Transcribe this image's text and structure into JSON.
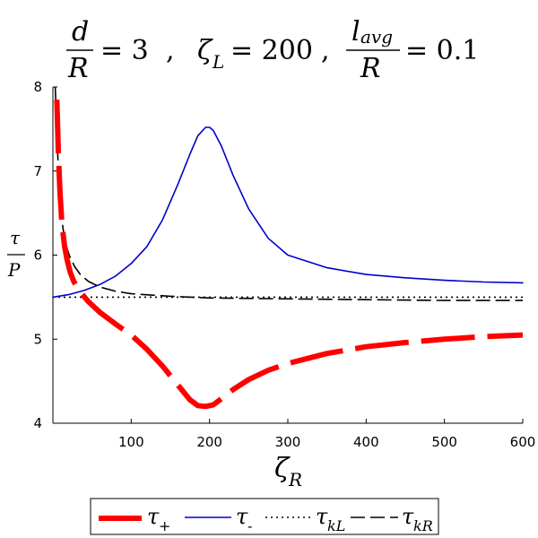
{
  "title": {
    "d_frac": {
      "num": "d",
      "den": "R",
      "value": "= 3"
    },
    "sep1": ",",
    "zetaL": {
      "sym": "ζ",
      "sub": "L",
      "value": "= 200"
    },
    "sep2": ",",
    "lavg_frac": {
      "num": "l",
      "num_sub": "avg",
      "den": "R",
      "value": "= 0.1"
    }
  },
  "ylabel": {
    "num": "τ",
    "den": "P"
  },
  "xlabel": {
    "sym": "ζ",
    "sub": "R"
  },
  "legend": [
    {
      "sym": "τ",
      "sub": "+"
    },
    {
      "sym": "τ",
      "sub": "-"
    },
    {
      "sym": "τ",
      "sub": "kL"
    },
    {
      "sym": "τ",
      "sub": "kR"
    }
  ],
  "chart_data": {
    "type": "line",
    "xlim": [
      0,
      600
    ],
    "ylim": [
      4,
      8
    ],
    "x_ticks": [
      100,
      200,
      300,
      400,
      500,
      600
    ],
    "y_ticks": [
      4,
      5,
      6,
      7,
      8
    ],
    "grid": false,
    "legend_position": "bottom",
    "series": [
      {
        "name": "τ+",
        "color": "#ff0000",
        "style": "thick-dashed",
        "x": [
          5,
          7,
          9,
          11,
          13,
          15,
          18,
          22,
          27,
          35,
          45,
          60,
          80,
          100,
          120,
          140,
          160,
          175,
          185,
          195,
          205,
          215,
          230,
          250,
          275,
          300,
          350,
          400,
          450,
          500,
          550,
          600
        ],
        "y": [
          7.85,
          7.2,
          6.75,
          6.45,
          6.25,
          6.1,
          5.95,
          5.8,
          5.68,
          5.56,
          5.45,
          5.32,
          5.18,
          5.05,
          4.88,
          4.68,
          4.45,
          4.28,
          4.21,
          4.2,
          4.22,
          4.29,
          4.4,
          4.52,
          4.63,
          4.71,
          4.83,
          4.91,
          4.96,
          5.0,
          5.03,
          5.05
        ]
      },
      {
        "name": "τ-",
        "color": "#0000cc",
        "style": "solid",
        "x": [
          0,
          20,
          40,
          60,
          80,
          100,
          120,
          140,
          160,
          175,
          185,
          195,
          200,
          205,
          215,
          230,
          250,
          275,
          300,
          350,
          400,
          450,
          500,
          550,
          600
        ],
        "y": [
          5.5,
          5.53,
          5.58,
          5.65,
          5.75,
          5.9,
          6.1,
          6.42,
          6.85,
          7.2,
          7.42,
          7.52,
          7.52,
          7.48,
          7.3,
          6.95,
          6.55,
          6.2,
          6.0,
          5.85,
          5.77,
          5.73,
          5.7,
          5.68,
          5.67
        ]
      },
      {
        "name": "τkL",
        "color": "#000000",
        "style": "dotted",
        "x": [
          0,
          100,
          200,
          300,
          400,
          500,
          600
        ],
        "y": [
          5.5,
          5.5,
          5.5,
          5.5,
          5.5,
          5.5,
          5.5
        ]
      },
      {
        "name": "τkR",
        "color": "#000000",
        "style": "long-dash",
        "x": [
          3,
          5,
          7,
          9,
          11,
          14,
          18,
          22,
          28,
          35,
          45,
          60,
          80,
          100,
          150,
          200,
          300,
          400,
          500,
          600
        ],
        "y": [
          8.0,
          7.5,
          7.0,
          6.7,
          6.45,
          6.25,
          6.08,
          5.97,
          5.86,
          5.77,
          5.69,
          5.62,
          5.57,
          5.54,
          5.51,
          5.49,
          5.48,
          5.47,
          5.46,
          5.46
        ]
      }
    ]
  }
}
